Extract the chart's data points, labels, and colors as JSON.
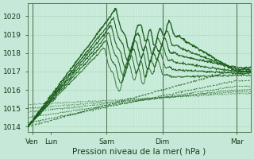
{
  "xlabel": "Pression niveau de la mer( hPa )",
  "bg_color": "#c5e8d8",
  "plot_bg_color": "#cceedd",
  "grid_color_v": "#b0d8c0",
  "grid_color_h": "#b0d8c0",
  "line_color": "#1a5c1a",
  "ylim": [
    1013.7,
    1020.7
  ],
  "xlim": [
    0,
    96
  ],
  "yticks": [
    1014,
    1015,
    1016,
    1017,
    1018,
    1019,
    1020
  ],
  "xtick_positions": [
    2,
    10,
    34,
    58,
    90
  ],
  "xtick_labels": [
    "Ven",
    "Lun",
    "Sam",
    "Dim",
    "Mar"
  ],
  "vline_positions": [
    2,
    34,
    58,
    90
  ]
}
